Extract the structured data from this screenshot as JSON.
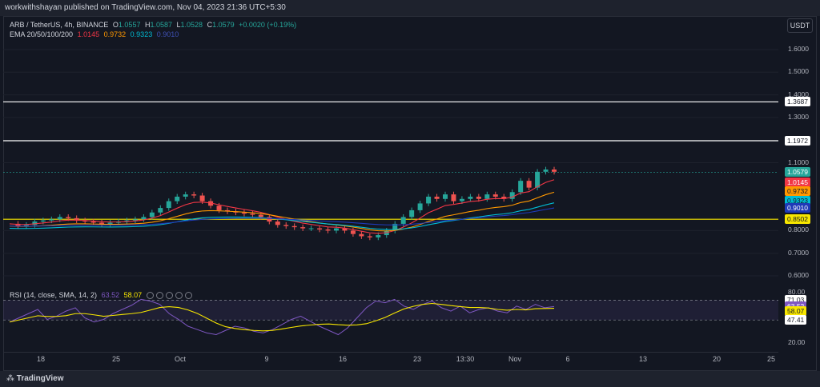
{
  "header": {
    "text": "workwithshayan published on TradingView.com, Nov 04, 2023 21:36 UTC+5:30"
  },
  "symbol": {
    "title": "ARB / TetherUS, 4h, BINANCE",
    "o_label": "O",
    "o": "1.0557",
    "h_label": "H",
    "h": "1.0587",
    "l_label": "L",
    "l": "1.0528",
    "c_label": "C",
    "c": "1.0579",
    "change": "+0.0020 (+0.19%)"
  },
  "ema": {
    "label": "EMA 20/50/100/200",
    "v20": "1.0145",
    "v50": "0.9732",
    "v100": "0.9323",
    "v200": "0.9010"
  },
  "currency_button": "USDT",
  "price_axis": {
    "ticks": [
      {
        "label": "1.6000",
        "v": 1.6
      },
      {
        "label": "1.5000",
        "v": 1.5
      },
      {
        "label": "1.4000",
        "v": 1.4
      },
      {
        "label": "1.3000",
        "v": 1.3
      },
      {
        "label": "1.1000",
        "v": 1.1
      },
      {
        "label": "0.8000",
        "v": 0.8
      },
      {
        "label": "0.7000",
        "v": 0.7
      },
      {
        "label": "0.6000",
        "v": 0.6
      }
    ],
    "badges": [
      {
        "label": "1.3687",
        "v": 1.3687,
        "bg": "#ffffff",
        "fg": "#131722"
      },
      {
        "label": "1.1972",
        "v": 1.1972,
        "bg": "#ffffff",
        "fg": "#131722"
      },
      {
        "label": "1.0579",
        "v": 1.0579,
        "bg": "#26a69a",
        "fg": "#ffffff"
      },
      {
        "label": "1.0145",
        "v": 1.0145,
        "bg": "#f23645",
        "fg": "#ffffff"
      },
      {
        "label": "0.9732",
        "v": 0.9732,
        "bg": "#ff9800",
        "fg": "#131722"
      },
      {
        "label": "0.9323",
        "v": 0.9323,
        "bg": "#00bcd4",
        "fg": "#131722"
      },
      {
        "label": "0.9010",
        "v": 0.901,
        "bg": "#1e3ab8",
        "fg": "#ffffff"
      },
      {
        "label": "0.8502",
        "v": 0.8502,
        "bg": "#f7e600",
        "fg": "#131722"
      }
    ]
  },
  "rsi": {
    "label": "RSI (14, close, SMA, 14, 2)",
    "rsi": "63.52",
    "sma": "58.07",
    "ticks": [
      {
        "label": "80.00",
        "v": 80
      },
      {
        "label": "20.00",
        "v": 20
      }
    ],
    "badges": [
      {
        "label": "71.03",
        "v": 71.03,
        "bg": "#ffffff",
        "fg": "#131722"
      },
      {
        "label": "63.52",
        "v": 63.52,
        "bg": "#7e57c2",
        "fg": "#ffffff"
      },
      {
        "label": "58.07",
        "v": 58.07,
        "bg": "#f7e600",
        "fg": "#131722"
      },
      {
        "label": "47.41",
        "v": 47.41,
        "bg": "#ffffff",
        "fg": "#131722"
      }
    ]
  },
  "time_axis": [
    "18",
    "25",
    "Oct",
    "9",
    "16",
    "23",
    "13:30",
    "Nov",
    "6",
    "13",
    "20",
    "25"
  ],
  "footer": {
    "brand": "TradingView"
  },
  "colors": {
    "bg": "#131722",
    "up": "#26a69a",
    "down": "#ef5350",
    "ema20": "#f23645",
    "ema50": "#ff9800",
    "ema100": "#00bcd4",
    "ema200": "#1e3ab8",
    "rsi": "#7e57c2",
    "rsi_sma": "#f7e600"
  },
  "chart_data": {
    "type": "line",
    "horizontal_levels": [
      1.3687,
      1.1972,
      0.8502
    ],
    "last_close": 1.0579,
    "ema_last": {
      "ema20": 1.0145,
      "ema50": 0.9732,
      "ema100": 0.9323,
      "ema200": 0.901
    },
    "close_path": [
      0.83,
      0.82,
      0.825,
      0.84,
      0.845,
      0.85,
      0.86,
      0.855,
      0.845,
      0.84,
      0.835,
      0.83,
      0.835,
      0.84,
      0.845,
      0.85,
      0.86,
      0.88,
      0.9,
      0.93,
      0.95,
      0.96,
      0.955,
      0.93,
      0.91,
      0.89,
      0.885,
      0.88,
      0.875,
      0.87,
      0.86,
      0.84,
      0.825,
      0.82,
      0.815,
      0.81,
      0.81,
      0.805,
      0.8,
      0.81,
      0.8,
      0.785,
      0.775,
      0.77,
      0.78,
      0.8,
      0.83,
      0.86,
      0.89,
      0.92,
      0.95,
      0.94,
      0.96,
      0.93,
      0.94,
      0.95,
      0.94,
      0.96,
      0.95,
      0.94,
      0.97,
      1.02,
      0.99,
      1.06,
      1.07,
      1.06
    ],
    "rsi_path": [
      45,
      50,
      55,
      60,
      48,
      52,
      58,
      62,
      50,
      45,
      48,
      55,
      60,
      65,
      72,
      70,
      66,
      55,
      48,
      40,
      36,
      32,
      30,
      35,
      40,
      38,
      34,
      32,
      36,
      42,
      48,
      52,
      46,
      40,
      35,
      30,
      38,
      50,
      62,
      70,
      68,
      72,
      64,
      60,
      66,
      70,
      62,
      58,
      64,
      56,
      60,
      62,
      58,
      56,
      64,
      60,
      66,
      62,
      63.5
    ]
  }
}
